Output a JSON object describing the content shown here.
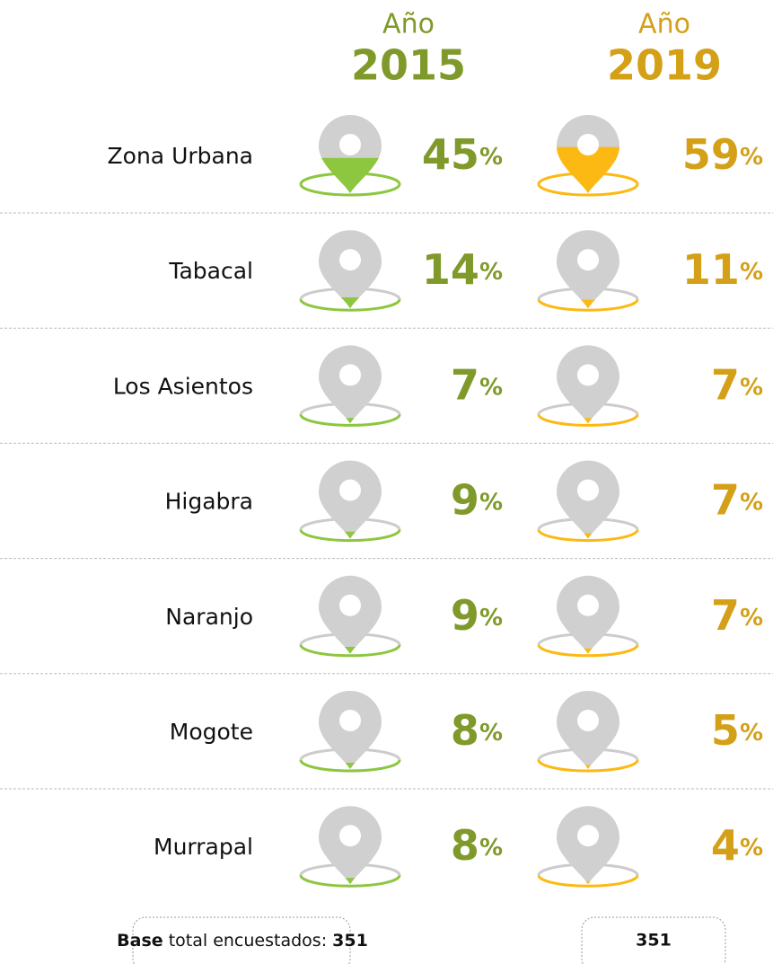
{
  "chart_data": {
    "type": "pin-fill",
    "header_word": "Año",
    "unit": "%",
    "categories": [
      "Zona Urbana",
      "Tabacal",
      "Los Asientos",
      "Higabra",
      "Naranjo",
      "Mogote",
      "Murrapal"
    ],
    "ylim": [
      0,
      100
    ],
    "series": [
      {
        "name": "2015",
        "color": "#8dc63f",
        "text_color": "#7f9a2a",
        "values": [
          45,
          14,
          7,
          9,
          9,
          8,
          8
        ]
      },
      {
        "name": "2019",
        "color": "#fdb913",
        "text_color": "#d4a017",
        "values": [
          59,
          11,
          7,
          7,
          7,
          5,
          4
        ]
      }
    ],
    "footer": {
      "label_bold": "Base",
      "label": "total encuestados:",
      "values": [
        351,
        351
      ]
    }
  }
}
